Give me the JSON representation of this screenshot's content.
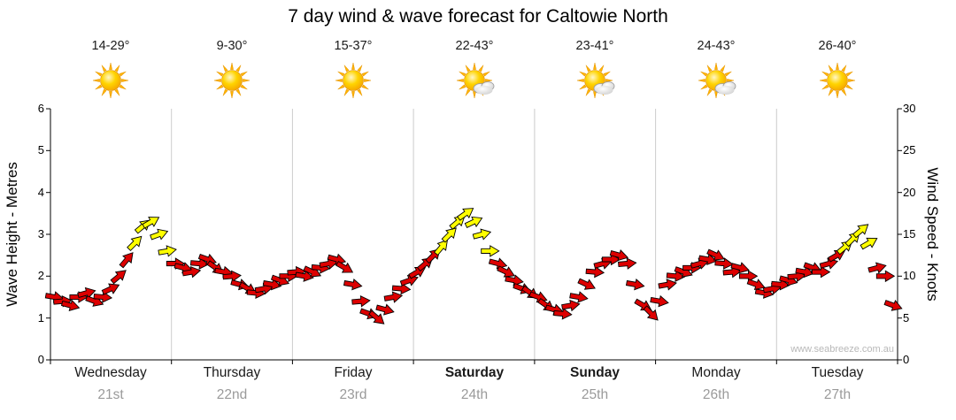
{
  "title": "7 day wind & wave forecast for Caltowie North",
  "watermark": "www.seabreeze.com.au",
  "axes": {
    "left_label": "Wave Height - Metres",
    "right_label": "Wind Speed - Knots",
    "left_ticks": [
      0,
      1,
      2,
      3,
      4,
      5,
      6
    ],
    "right_ticks": [
      0,
      5,
      10,
      15,
      20,
      25,
      30
    ]
  },
  "days": [
    {
      "name": "Wednesday",
      "date": "21st",
      "temp": "14-29°",
      "icon": "sun",
      "bold": false
    },
    {
      "name": "Thursday",
      "date": "22nd",
      "temp": "9-30°",
      "icon": "sun",
      "bold": false
    },
    {
      "name": "Friday",
      "date": "23rd",
      "temp": "15-37°",
      "icon": "sun",
      "bold": false
    },
    {
      "name": "Saturday",
      "date": "24th",
      "temp": "22-43°",
      "icon": "sun-cloud",
      "bold": true
    },
    {
      "name": "Sunday",
      "date": "25th",
      "temp": "23-41°",
      "icon": "sun-cloud",
      "bold": true
    },
    {
      "name": "Monday",
      "date": "26th",
      "temp": "24-43°",
      "icon": "sun-cloud",
      "bold": false
    },
    {
      "name": "Tuesday",
      "date": "27th",
      "temp": "26-40°",
      "icon": "sun",
      "bold": false
    }
  ],
  "chart_data": {
    "type": "line",
    "subtype": "wind-arrow-series",
    "x_unit": "days",
    "categories": [
      "Wednesday 21st",
      "Thursday 22nd",
      "Friday 23rd",
      "Saturday 24th",
      "Sunday 25th",
      "Monday 26th",
      "Tuesday 27th"
    ],
    "ylim_left": [
      0,
      6
    ],
    "ylim_right": [
      0,
      30
    ],
    "grid": "vertical-day-boundaries",
    "speed_color_threshold_knots": 13,
    "colors": {
      "low": "#dd0000",
      "high": "#ffff00",
      "outline": "#000000",
      "grid": "#cccccc"
    },
    "wind_speeds_knots": [
      [
        7.5,
        7,
        6.5,
        7.5,
        8,
        7,
        7.5,
        8.5,
        10,
        12,
        14,
        16,
        16.5,
        15,
        13
      ],
      [
        11.5,
        11,
        10.5,
        11.5,
        12,
        11,
        10.5,
        10,
        9,
        8.5,
        8,
        8.5,
        9,
        9.5,
        10
      ],
      [
        10.5,
        10,
        10.5,
        11,
        11.5,
        12,
        11,
        9,
        7,
        5.5,
        5,
        6,
        7.5,
        8.5,
        9.5
      ],
      [
        10.5,
        11.5,
        12.5,
        13.5,
        15,
        16.5,
        17.5,
        16.5,
        15,
        13,
        11.5,
        10.5,
        9.5,
        8.5,
        8
      ],
      [
        7.5,
        6.5,
        6,
        5.5,
        6.5,
        7.5,
        9,
        10.5,
        11.5,
        12,
        12.5,
        11.5,
        9,
        6.5,
        5.5
      ],
      [
        7,
        9,
        10,
        10.5,
        11,
        11.5,
        12,
        12.5,
        11.5,
        10.5,
        11,
        10,
        9,
        8,
        8.5
      ],
      [
        9,
        9.5,
        10,
        10.5,
        11,
        10.5,
        11.5,
        12.5,
        13.5,
        14.5,
        15.5,
        14,
        11,
        10,
        6.5
      ]
    ],
    "wind_dirs_deg": [
      [
        10,
        -5,
        15,
        0,
        -15,
        20,
        5,
        -25,
        -40,
        -50,
        -45,
        -40,
        -30,
        -20,
        -10
      ],
      [
        0,
        15,
        -10,
        5,
        20,
        35,
        10,
        -5,
        15,
        30,
        5,
        -10,
        10,
        20,
        0
      ],
      [
        -5,
        10,
        25,
        5,
        -10,
        15,
        30,
        10,
        -5,
        20,
        40,
        15,
        -10,
        5,
        -20
      ],
      [
        -30,
        -40,
        -45,
        -50,
        -45,
        -40,
        -35,
        -25,
        -15,
        0,
        15,
        25,
        10,
        20,
        35
      ],
      [
        20,
        35,
        15,
        5,
        -10,
        10,
        25,
        5,
        -15,
        0,
        15,
        -5,
        10,
        30,
        45
      ],
      [
        10,
        -10,
        5,
        20,
        0,
        -15,
        10,
        25,
        5,
        -5,
        15,
        0,
        20,
        10,
        -10
      ],
      [
        5,
        15,
        -5,
        10,
        20,
        0,
        -15,
        -30,
        -40,
        -45,
        -40,
        -30,
        -15,
        0,
        20
      ]
    ]
  }
}
